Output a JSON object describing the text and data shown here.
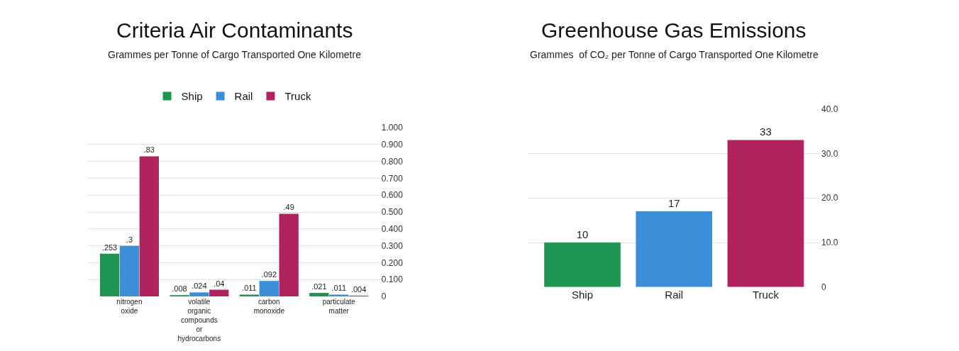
{
  "chart_data": [
    {
      "type": "bar",
      "title": "Criteria Air Contaminants",
      "subtitle": "Grammes per Tonne of Cargo Transported One Kilometre",
      "categories": [
        "nitrogen oxide",
        "volatile organic compounds or hydrocarbons",
        "carbon monoxide",
        "particulate matter"
      ],
      "series": [
        {
          "name": "Ship",
          "color": "#1e9652",
          "values": [
            0.253,
            0.008,
            0.011,
            0.021
          ],
          "value_labels": [
            ".253",
            ".008",
            ".011",
            ".021"
          ]
        },
        {
          "name": "Rail",
          "color": "#3b8fd8",
          "values": [
            0.3,
            0.024,
            0.092,
            0.011
          ],
          "value_labels": [
            ".3",
            ".024",
            ".092",
            ".011"
          ]
        },
        {
          "name": "Truck",
          "color": "#b0235e",
          "values": [
            0.83,
            0.04,
            0.49,
            0.004
          ],
          "value_labels": [
            ".83",
            ".04",
            ".49",
            ".004"
          ]
        }
      ],
      "ylim": [
        0,
        1
      ],
      "yticks": [
        {
          "value": 0,
          "label": "0"
        },
        {
          "value": 0.1,
          "label": "0.100"
        },
        {
          "value": 0.2,
          "label": "0.200"
        },
        {
          "value": 0.3,
          "label": "0.300"
        },
        {
          "value": 0.4,
          "label": "0.400"
        },
        {
          "value": 0.5,
          "label": "0.500"
        },
        {
          "value": 0.6,
          "label": "0.600"
        },
        {
          "value": 0.7,
          "label": "0.700"
        },
        {
          "value": 0.8,
          "label": "0.800"
        },
        {
          "value": 0.9,
          "label": "0.900"
        },
        {
          "value": 1,
          "label": "1.000"
        }
      ],
      "grid": "y",
      "legend": "top"
    },
    {
      "type": "bar",
      "title": "Greenhouse Gas Emissions",
      "subtitle": "Grammes  of CO₂ per Tonne of Cargo Transported One Kilometre",
      "categories": [
        "Ship",
        "Rail",
        "Truck"
      ],
      "values": [
        10,
        17,
        33
      ],
      "colors": [
        "#1e9652",
        "#3b8fd8",
        "#b0235e"
      ],
      "data_labels": true,
      "ylim": [
        0,
        40
      ],
      "yticks": [
        {
          "value": 0,
          "label": "0"
        },
        {
          "value": 10,
          "label": "10.0"
        },
        {
          "value": 20,
          "label": "20.0"
        },
        {
          "value": 30,
          "label": "30.0"
        },
        {
          "value": 40,
          "label": "40.0"
        }
      ],
      "grid": "y"
    }
  ]
}
